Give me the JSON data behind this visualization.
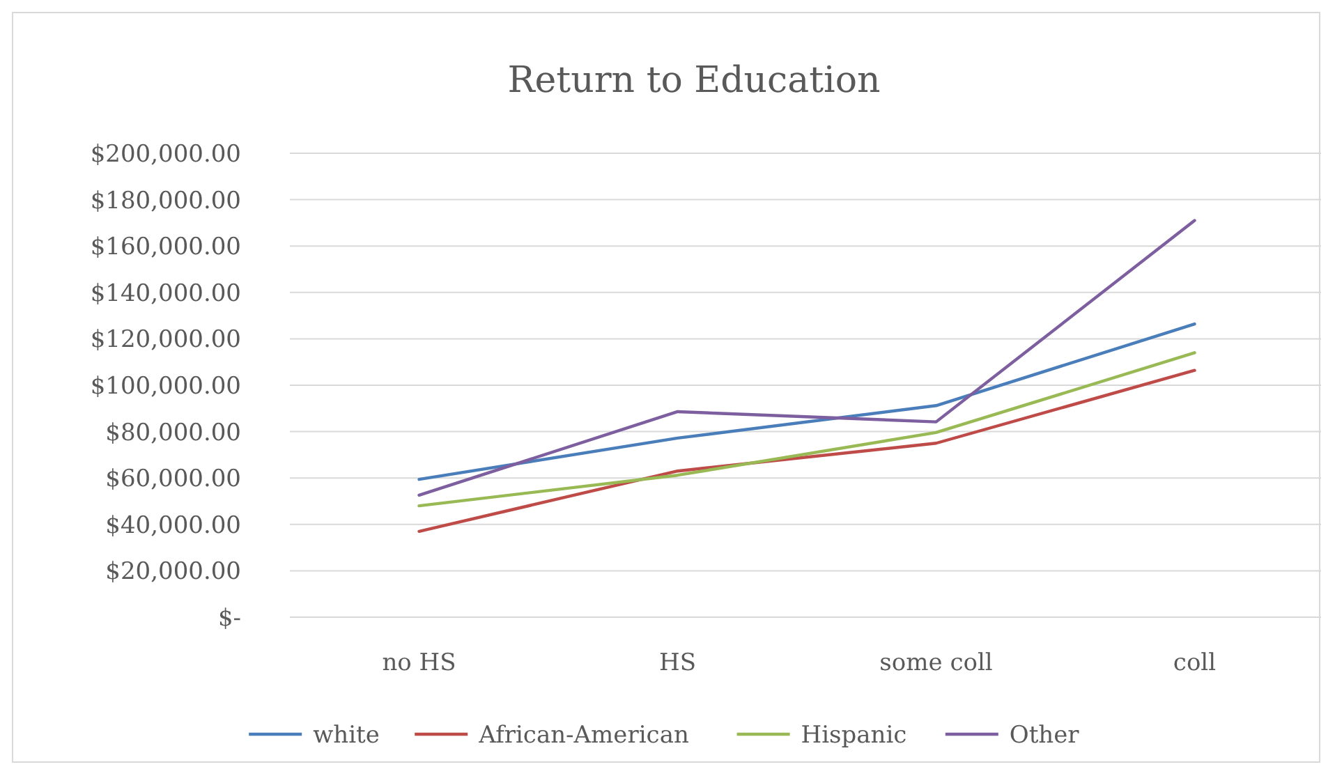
{
  "chart_data": {
    "type": "line",
    "title": "Return to Education",
    "categories": [
      "no HS",
      "HS",
      "some coll",
      "coll"
    ],
    "series": [
      {
        "name": "white",
        "color": "#4a7ebb",
        "values": [
          59400,
          77200,
          91200,
          126400
        ]
      },
      {
        "name": "African-American",
        "color": "#be4b48",
        "values": [
          37000,
          63000,
          75000,
          106400
        ]
      },
      {
        "name": "Hispanic",
        "color": "#98b954",
        "values": [
          48000,
          61200,
          79600,
          114000
        ]
      },
      {
        "name": "Other",
        "color": "#7d5fa0",
        "values": [
          52600,
          88600,
          84200,
          171000
        ]
      }
    ],
    "ylim": [
      0,
      200000
    ],
    "yticks": [
      {
        "value": 0,
        "label": "$-"
      },
      {
        "value": 20000,
        "label": "$20,000.00"
      },
      {
        "value": 40000,
        "label": "$40,000.00"
      },
      {
        "value": 60000,
        "label": "$60,000.00"
      },
      {
        "value": 80000,
        "label": "$80,000.00"
      },
      {
        "value": 100000,
        "label": "$100,000.00"
      },
      {
        "value": 120000,
        "label": "$120,000.00"
      },
      {
        "value": 140000,
        "label": "$140,000.00"
      },
      {
        "value": 160000,
        "label": "$160,000.00"
      },
      {
        "value": 180000,
        "label": "$180,000.00"
      },
      {
        "value": 200000,
        "label": "$200,000.00"
      }
    ],
    "grid": "y",
    "legend": "bottom",
    "marker": "none",
    "line_style": "solid"
  }
}
